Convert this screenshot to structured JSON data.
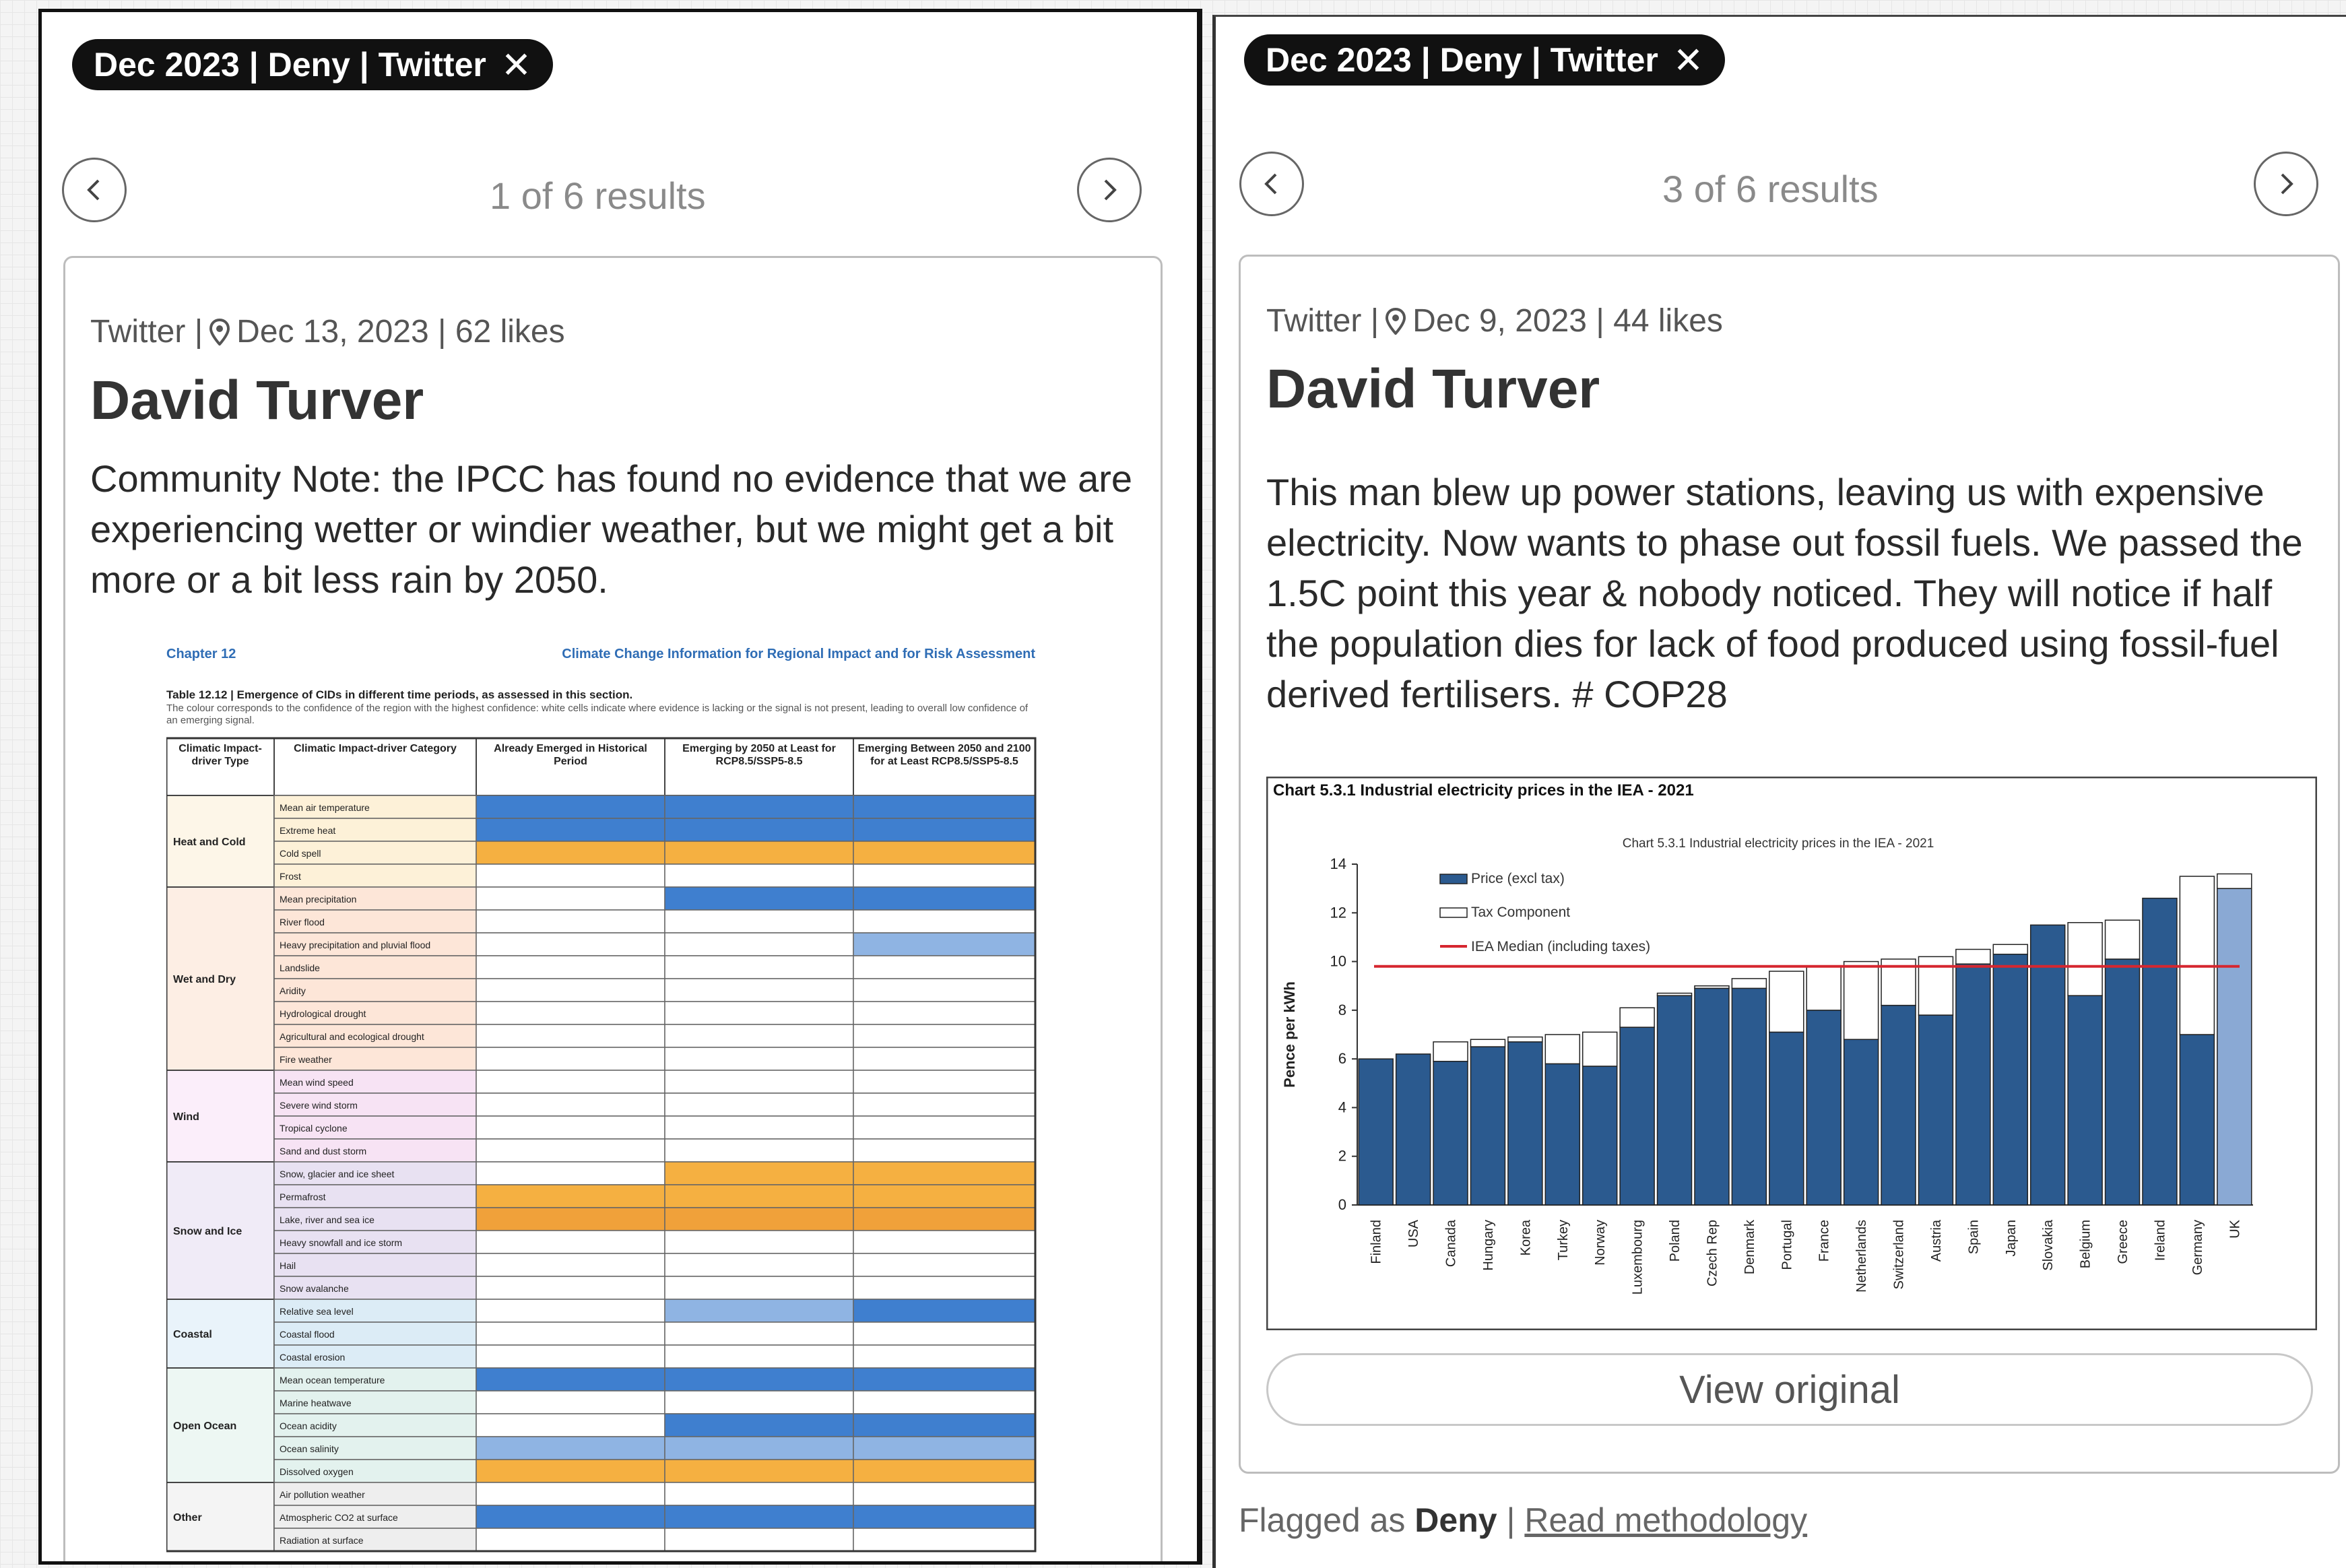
{
  "left_panel": {
    "chip": {
      "label": "Dec 2023 | Deny | Twitter",
      "close": "✕"
    },
    "result_count": "1 of 6 results",
    "card": {
      "platform": "Twitter |",
      "meta_rest": "Dec 13, 2023 | 62 likes",
      "author": "David Turver",
      "text": "Community Note: the IPCC has found no evidence that we are experiencing wetter or windier weather, but we might get a bit more or a bit less rain by 2050.",
      "table": {
        "chapter": "Chapter 12",
        "header_right": "Climate Change Information for Regional Impact and for Risk Assessment",
        "caption_bold": "Table 12.12 | Emergence of CIDs in different time periods, as assessed in this section.",
        "caption_rest": "The colour corresponds to the confidence of the region with the highest confidence: white cells indicate where evidence is lacking or the signal is not present, leading to overall low confidence of an emerging signal.",
        "columns": [
          "Climatic Impact-driver Type",
          "Climatic Impact-driver Category",
          "Already Emerged in Historical Period",
          "Emerging by 2050 at Least for RCP8.5/SSP5-8.5",
          "Emerging Between 2050 and 2100 for at Least RCP8.5/SSP5-8.5"
        ],
        "groups": [
          {
            "name": "Heat and Cold",
            "rows": [
              "Mean air temperature",
              "Extreme heat",
              "Cold spell",
              "Frost"
            ]
          },
          {
            "name": "Wet and Dry",
            "rows": [
              "Mean precipitation",
              "River flood",
              "Heavy precipitation and pluvial flood",
              "Landslide",
              "Aridity",
              "Hydrological drought",
              "Agricultural and ecological drought",
              "Fire weather"
            ]
          },
          {
            "name": "Wind",
            "rows": [
              "Mean wind speed",
              "Severe wind storm",
              "Tropical cyclone",
              "Sand and dust storm"
            ]
          },
          {
            "name": "Snow and Ice",
            "rows": [
              "Snow, glacier and ice sheet",
              "Permafrost",
              "Lake, river and sea ice",
              "Heavy snowfall and ice storm",
              "Hail",
              "Snow avalanche"
            ]
          },
          {
            "name": "Coastal",
            "rows": [
              "Relative sea level",
              "Coastal flood",
              "Coastal erosion"
            ]
          },
          {
            "name": "Open Ocean",
            "rows": [
              "Mean ocean temperature",
              "Marine heatwave",
              "Ocean acidity",
              "Ocean salinity",
              "Dissolved oxygen"
            ]
          },
          {
            "name": "Other",
            "rows": [
              "Air pollution weather",
              "Atmospheric CO2 at surface",
              "Radiation at surface"
            ]
          }
        ],
        "colors": {
          "blue": "#3f7fcf",
          "light_blue": "#8fb4e3",
          "orange": "#f5b041",
          "dark_orange": "#f0a13a"
        }
      }
    }
  },
  "right_panel": {
    "chip": {
      "label": "Dec 2023 | Deny | Twitter",
      "close": "✕"
    },
    "result_count": "3 of 6 results",
    "card": {
      "platform": "Twitter |",
      "meta_rest": "Dec 9, 2023 | 44 likes",
      "author": "David Turver",
      "text": "This man blew up power stations, leaving us with expensive electricity. Now wants to phase out fossil fuels. We passed the 1.5C point this year & nobody noticed. They will notice if half the population dies for lack of food produced using fossil-fuel derived fertilisers. # COP28",
      "view_original": "View original"
    },
    "flagged_prefix": "Flagged as",
    "flagged_value": "Deny",
    "flagged_sep": "|",
    "methodology_link": "Read methodology"
  },
  "chart_data": {
    "type": "bar",
    "title": "Chart 5.3.1 Industrial electricity prices in the IEA - 2021",
    "inner_title": "Chart 5.3.1 Industrial electricity prices in the IEA - 2021",
    "ylabel": "Pence per kWh",
    "ylim": [
      0,
      14
    ],
    "yticks": [
      0,
      2,
      4,
      6,
      8,
      10,
      12,
      14
    ],
    "categories": [
      "Finland",
      "USA",
      "Canada",
      "Hungary",
      "Korea",
      "Turkey",
      "Norway",
      "Luxembourg",
      "Poland",
      "Czech Rep",
      "Denmark",
      "Portugal",
      "France",
      "Netherlands",
      "Switzerland",
      "Austria",
      "Spain",
      "Japan",
      "Slovakia",
      "Belgium",
      "Greece",
      "Ireland",
      "Germany",
      "UK"
    ],
    "series": [
      {
        "name": "Price (excl tax)",
        "values": [
          6.0,
          6.2,
          5.9,
          6.5,
          6.7,
          5.8,
          5.7,
          7.3,
          8.6,
          8.9,
          8.9,
          7.1,
          8.0,
          6.8,
          8.2,
          7.8,
          9.9,
          10.3,
          11.5,
          8.6,
          10.1,
          12.6,
          7.0,
          13.0
        ]
      },
      {
        "name": "Tax Component",
        "values": [
          0.0,
          0.0,
          0.8,
          0.3,
          0.2,
          1.2,
          1.4,
          0.8,
          0.1,
          0.1,
          0.4,
          2.5,
          1.8,
          3.2,
          1.9,
          2.4,
          0.6,
          0.4,
          0.0,
          3.0,
          1.6,
          0.0,
          6.5,
          0.6
        ]
      }
    ],
    "reference_line": {
      "name": "IEA Median (including taxes)",
      "value": 9.8
    },
    "colors": {
      "price": "#2b5a8f",
      "tax": "#ffffff",
      "uk": "#8aa9d4",
      "median": "#d6262f"
    },
    "legend_position": "top-left"
  }
}
